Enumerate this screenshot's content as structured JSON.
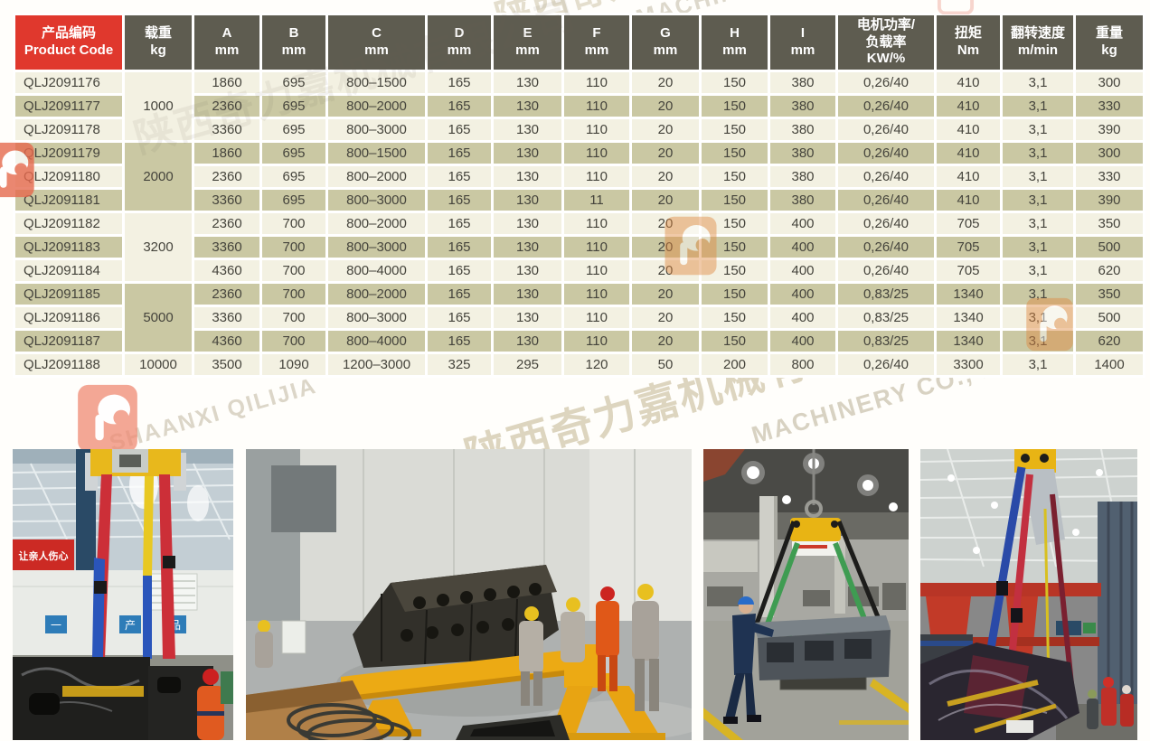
{
  "watermark": {
    "company_cn": "陕西奇力嘉机械有限公司",
    "company_en": "SHAANXI QILIJIA MACHINERY CO., LTD.",
    "company_en_fragment": "MACHINERY CO., LTD.",
    "company_en_fragment2": "SHAANXI QILIJIA"
  },
  "table": {
    "colors": {
      "header_bg": "#5e5c50",
      "header_red": "#e0382d",
      "row_light": "#f3f1e2",
      "row_dark": "#cac8a3",
      "grid": "#ffffff",
      "text": "#45443c"
    },
    "header": [
      {
        "lines": [
          "产品编码",
          "Product Code"
        ],
        "style": "red"
      },
      {
        "lines": [
          "载重",
          "kg"
        ]
      },
      {
        "lines": [
          "A",
          "mm"
        ]
      },
      {
        "lines": [
          "B",
          "mm"
        ]
      },
      {
        "lines": [
          "C",
          "mm"
        ]
      },
      {
        "lines": [
          "D",
          "mm"
        ]
      },
      {
        "lines": [
          "E",
          "mm"
        ]
      },
      {
        "lines": [
          "F",
          "mm"
        ]
      },
      {
        "lines": [
          "G",
          "mm"
        ]
      },
      {
        "lines": [
          "H",
          "mm"
        ]
      },
      {
        "lines": [
          "I",
          "mm"
        ]
      },
      {
        "lines": [
          "电机功率/",
          "负载率",
          "KW/%"
        ]
      },
      {
        "lines": [
          "扭矩",
          "Nm"
        ]
      },
      {
        "lines": [
          "翻转速度",
          "m/min"
        ]
      },
      {
        "lines": [
          "重量",
          "kg"
        ]
      }
    ],
    "rows": [
      {
        "code": "QLJ2091176",
        "load": "1000",
        "load_span": 3,
        "values": [
          "1860",
          "695",
          "800–1500",
          "165",
          "130",
          "110",
          "20",
          "150",
          "380",
          "0,26/40",
          "410",
          "3,1",
          "300"
        ]
      },
      {
        "code": "QLJ2091177",
        "values": [
          "2360",
          "695",
          "800–2000",
          "165",
          "130",
          "110",
          "20",
          "150",
          "380",
          "0,26/40",
          "410",
          "3,1",
          "330"
        ]
      },
      {
        "code": "QLJ2091178",
        "values": [
          "3360",
          "695",
          "800–3000",
          "165",
          "130",
          "110",
          "20",
          "150",
          "380",
          "0,26/40",
          "410",
          "3,1",
          "390"
        ]
      },
      {
        "code": "QLJ2091179",
        "load": "2000",
        "load_span": 3,
        "values": [
          "1860",
          "695",
          "800–1500",
          "165",
          "130",
          "110",
          "20",
          "150",
          "380",
          "0,26/40",
          "410",
          "3,1",
          "300"
        ]
      },
      {
        "code": "QLJ2091180",
        "values": [
          "2360",
          "695",
          "800–2000",
          "165",
          "130",
          "110",
          "20",
          "150",
          "380",
          "0,26/40",
          "410",
          "3,1",
          "330"
        ]
      },
      {
        "code": "QLJ2091181",
        "values": [
          "3360",
          "695",
          "800–3000",
          "165",
          "130",
          "11",
          "20",
          "150",
          "380",
          "0,26/40",
          "410",
          "3,1",
          "390"
        ]
      },
      {
        "code": "QLJ2091182",
        "load": "3200",
        "load_span": 3,
        "values": [
          "2360",
          "700",
          "800–2000",
          "165",
          "130",
          "110",
          "20",
          "150",
          "400",
          "0,26/40",
          "705",
          "3,1",
          "350"
        ]
      },
      {
        "code": "QLJ2091183",
        "values": [
          "3360",
          "700",
          "800–3000",
          "165",
          "130",
          "110",
          "20",
          "150",
          "400",
          "0,26/40",
          "705",
          "3,1",
          "500"
        ]
      },
      {
        "code": "QLJ2091184",
        "values": [
          "4360",
          "700",
          "800–4000",
          "165",
          "130",
          "110",
          "20",
          "150",
          "400",
          "0,26/40",
          "705",
          "3,1",
          "620"
        ]
      },
      {
        "code": "QLJ2091185",
        "load": "5000",
        "load_span": 3,
        "values": [
          "2360",
          "700",
          "800–2000",
          "165",
          "130",
          "110",
          "20",
          "150",
          "400",
          "0,83/25",
          "1340",
          "3,1",
          "350"
        ]
      },
      {
        "code": "QLJ2091186",
        "values": [
          "3360",
          "700",
          "800–3000",
          "165",
          "130",
          "110",
          "20",
          "150",
          "400",
          "0,83/25",
          "1340",
          "3,1",
          "500"
        ]
      },
      {
        "code": "QLJ2091187",
        "values": [
          "4360",
          "700",
          "800–4000",
          "165",
          "130",
          "110",
          "20",
          "150",
          "400",
          "0,83/25",
          "1340",
          "3,1",
          "620"
        ]
      },
      {
        "code": "QLJ2091188",
        "load": "10000",
        "load_span": 1,
        "values": [
          "3500",
          "1090",
          "1200–3000",
          "325",
          "295",
          "120",
          "50",
          "200",
          "800",
          "0,26/40",
          "3300",
          "3,1",
          "1400"
        ]
      }
    ]
  },
  "photos": [
    {
      "alt": "Engine blocks lifted with red, blue and yellow straps in workshop",
      "banner": "让亲人伤心",
      "signs": [
        "一",
        "产",
        "品"
      ]
    },
    {
      "alt": "Yellow engine-block tilter with workers in hard hats"
    },
    {
      "alt": "Gray unit lifted on green slings guided by worker"
    },
    {
      "alt": "Wrapped engine lifted by straps under red gantry cranes"
    }
  ]
}
